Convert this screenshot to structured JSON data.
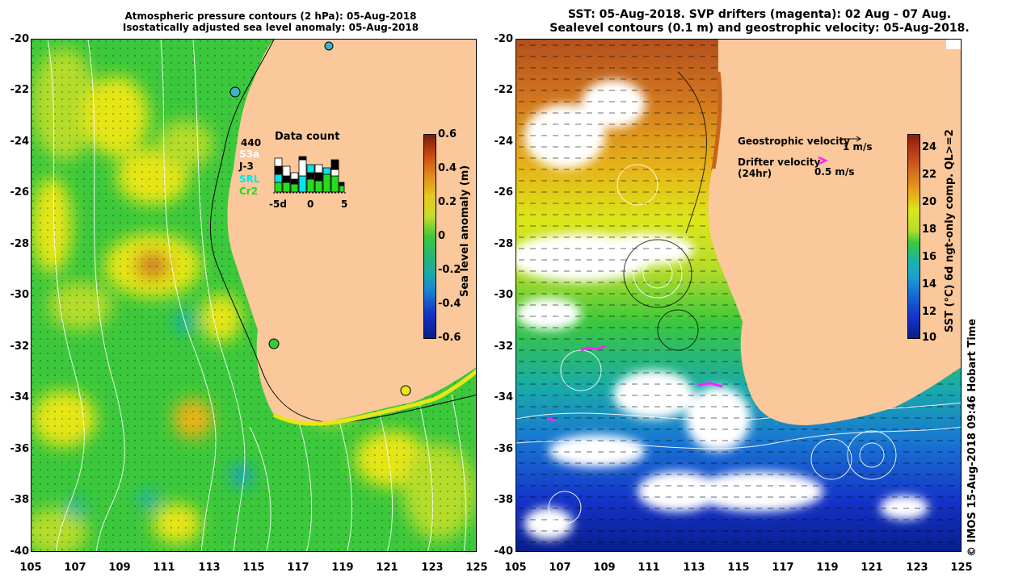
{
  "left_panel": {
    "title_line1": "Atmospheric pressure contours (2 hPa): 05-Aug-2018",
    "title_line2": "Isostatically adjusted sea level anomaly: 05-Aug-2018",
    "y_ticks": [
      "-20",
      "-22",
      "-24",
      "-26",
      "-28",
      "-30",
      "-32",
      "-34",
      "-36",
      "-38",
      "-40"
    ],
    "x_ticks": [
      "105",
      "107",
      "109",
      "111",
      "113",
      "115",
      "117",
      "119",
      "121",
      "123",
      "125"
    ],
    "colorbar": {
      "label": "Sea level anomaly (m)",
      "ticks": [
        "0.6",
        "0.4",
        "0.2",
        "0",
        "-0.2",
        "-0.4",
        "-0.6"
      ],
      "range": [
        -0.6,
        0.6
      ]
    },
    "data_count": {
      "title": "Data count",
      "satellites": [
        {
          "name": "440",
          "color": "#000000"
        },
        {
          "name": "S3a",
          "color": "#ffffff"
        },
        {
          "name": "J-3",
          "color": "#000000"
        },
        {
          "name": "SRL",
          "color": "#00e5ee"
        },
        {
          "name": "Cr2",
          "color": "#22dd22"
        }
      ],
      "x_ticks": [
        "-5d",
        "0",
        "5"
      ]
    }
  },
  "right_panel": {
    "title_line1": "SST: 05-Aug-2018. SVP drifters (magenta): 02 Aug - 07 Aug.",
    "title_line2": "Sealevel contours (0.1 m) and geostrophic velocity: 05-Aug-2018.",
    "y_ticks": [
      "-20",
      "-22",
      "-24",
      "-26",
      "-28",
      "-30",
      "-32",
      "-34",
      "-36",
      "-38",
      "-40"
    ],
    "x_ticks": [
      "105",
      "107",
      "109",
      "111",
      "113",
      "115",
      "117",
      "119",
      "121",
      "123",
      "125"
    ],
    "legend": {
      "geostrophic_label": "Geostrophic velocity",
      "geostrophic_scale": "1 m/s",
      "drifter_label_line1": "Drifter velocity",
      "drifter_label_line2": "(24hr)",
      "drifter_scale": "0.5 m/s",
      "drifter_color": "#ff22ff"
    },
    "colorbar": {
      "label": "SST (°C) 6d ngt-only comp. QL>=2",
      "ticks": [
        "24",
        "22",
        "20",
        "18",
        "16",
        "14",
        "12",
        "10"
      ],
      "range": [
        10,
        25
      ]
    }
  },
  "credit": "© IMOS 15-Aug-2018 09:46 Hobart Time",
  "colors": {
    "land": "#fac89a",
    "sla_green": "#3cc83c",
    "sla_yellow": "#e6e619",
    "cloud": "#ffffff"
  }
}
